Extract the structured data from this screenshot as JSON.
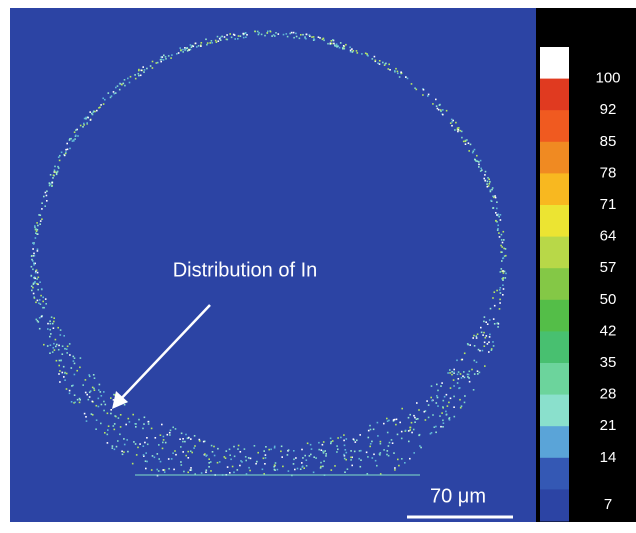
{
  "annotation": "Distribution of In",
  "scale_bar": "70 μm",
  "colorbar": {
    "labels": [
      "100",
      "92",
      "85",
      "78",
      "71",
      "64",
      "57",
      "50",
      "42",
      "35",
      "28",
      "21",
      "14",
      "7"
    ],
    "colors": [
      "#ffffff",
      "#e03a20",
      "#f05a20",
      "#f08a22",
      "#f8b820",
      "#ece432",
      "#b8d848",
      "#84c846",
      "#54be48",
      "#48c070",
      "#6cd49c",
      "#8ae0cc",
      "#5aa4d8",
      "#3458b4",
      "#2c44a4"
    ]
  }
}
